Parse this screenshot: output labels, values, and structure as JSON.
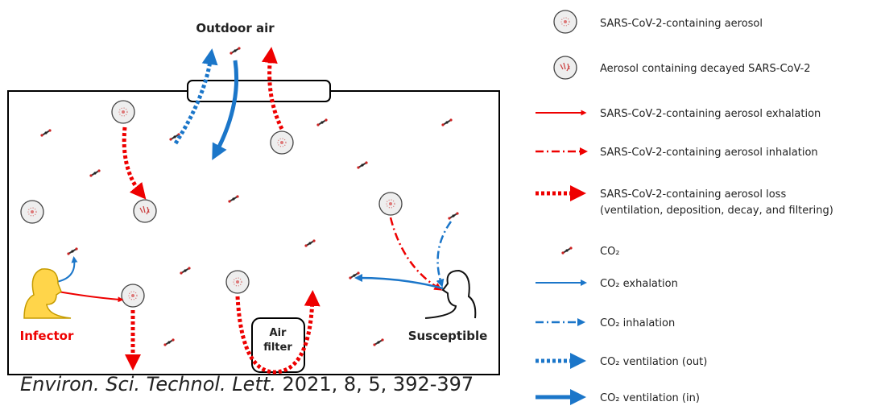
{
  "room": {
    "outdoor_label": "Outdoor air",
    "infector_label": "Infector",
    "susceptible_label": "Susceptible",
    "filter_label": [
      "Air",
      "filter"
    ]
  },
  "legend": [
    {
      "label": [
        "SARS-CoV-2-containing aerosol"
      ]
    },
    {
      "label": [
        "Aerosol containing decayed SARS-CoV-2"
      ]
    },
    {
      "label": [
        "SARS-CoV-2-containing aerosol exhalation"
      ]
    },
    {
      "label": [
        "SARS-CoV-2-containing aerosol inhalation"
      ]
    },
    {
      "label": [
        "SARS-CoV-2-containing aerosol loss",
        "(ventilation, deposition, decay, and filtering)"
      ]
    },
    {
      "label": [
        "CO₂"
      ]
    },
    {
      "label": [
        "CO₂ exhalation"
      ]
    },
    {
      "label": [
        "CO₂ inhalation"
      ]
    },
    {
      "label": [
        "CO₂ ventilation (out)"
      ]
    },
    {
      "label": [
        "CO₂ ventilation (in)"
      ]
    }
  ],
  "citation": {
    "journal": "Environ. Sci. Technol. Lett.",
    "details": " 2021, 8, 5, 392-397"
  }
}
